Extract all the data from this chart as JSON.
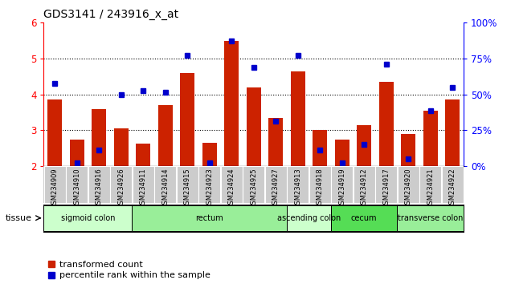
{
  "title": "GDS3141 / 243916_x_at",
  "samples": [
    "GSM234909",
    "GSM234910",
    "GSM234916",
    "GSM234926",
    "GSM234911",
    "GSM234914",
    "GSM234915",
    "GSM234923",
    "GSM234924",
    "GSM234925",
    "GSM234927",
    "GSM234913",
    "GSM234918",
    "GSM234919",
    "GSM234912",
    "GSM234917",
    "GSM234920",
    "GSM234921",
    "GSM234922"
  ],
  "red_values": [
    3.85,
    2.75,
    3.6,
    3.05,
    2.62,
    3.7,
    4.6,
    2.65,
    5.5,
    4.2,
    3.35,
    4.65,
    3.0,
    2.75,
    3.15,
    4.35,
    2.9,
    3.55,
    3.85
  ],
  "blue_values": [
    4.3,
    2.1,
    2.45,
    4.0,
    4.1,
    4.05,
    5.1,
    2.1,
    5.5,
    4.75,
    3.25,
    5.1,
    2.45,
    2.1,
    2.6,
    4.85,
    2.2,
    3.55,
    4.2
  ],
  "ylim_left": [
    2,
    6
  ],
  "ylim_right": [
    0,
    100
  ],
  "yticks_left": [
    2,
    3,
    4,
    5,
    6
  ],
  "yticks_right": [
    0,
    25,
    50,
    75,
    100
  ],
  "ytick_labels_right": [
    "0%",
    "25%",
    "50%",
    "75%",
    "100%"
  ],
  "bar_color": "#cc2200",
  "blue_color": "#0000cc",
  "tissue_groups": [
    {
      "label": "sigmoid colon",
      "start": 0,
      "end": 4,
      "color": "#ccffcc"
    },
    {
      "label": "rectum",
      "start": 4,
      "end": 11,
      "color": "#99ee99"
    },
    {
      "label": "ascending colon",
      "start": 11,
      "end": 13,
      "color": "#ccffcc"
    },
    {
      "label": "cecum",
      "start": 13,
      "end": 16,
      "color": "#55dd55"
    },
    {
      "label": "transverse colon",
      "start": 16,
      "end": 19,
      "color": "#99ee99"
    }
  ],
  "legend_red_label": "transformed count",
  "legend_blue_label": "percentile rank within the sample",
  "tissue_label": "tissue",
  "bg_plot": "#ffffff",
  "sample_box_color": "#cccccc"
}
